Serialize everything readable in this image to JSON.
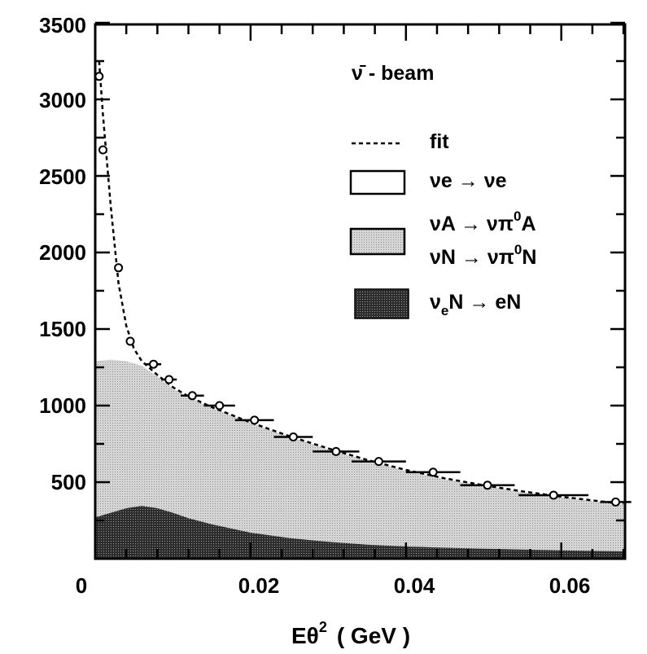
{
  "chart_data": {
    "type": "area",
    "title": "",
    "xlabel_main": "Eθ",
    "xlabel_sup": "2",
    "xlabel_unit": "( GeV )",
    "ylabel": "",
    "xlim": [
      0,
      0.068
    ],
    "ylim": [
      0,
      3500
    ],
    "x_tick_labels": [
      "0",
      "0.02",
      "0.04",
      "0.06"
    ],
    "y_tick_labels": [
      "500",
      "1000",
      "1500",
      "2000",
      "2500",
      "3000",
      "3500"
    ],
    "legend": {
      "beam_label": "ν̄ - beam",
      "fit_label": "fit",
      "nue_label": "νe → νe",
      "pi0_line1_a": "νA → νπ",
      "pi0_line1_sup": "0",
      "pi0_line1_b": "A",
      "pi0_line2_a": "νN → νπ",
      "pi0_line2_sup": "0",
      "pi0_line2_b": "N",
      "ccqe_a": "ν",
      "ccqe_sub": "e",
      "ccqe_b": "N → eN"
    },
    "series": [
      {
        "name": "fit",
        "x": [
          0.0005,
          0.001,
          0.002,
          0.003,
          0.004,
          0.005,
          0.006,
          0.008,
          0.01,
          0.012,
          0.015,
          0.02,
          0.025,
          0.03,
          0.035,
          0.04,
          0.045,
          0.05,
          0.055,
          0.06,
          0.065,
          0.068
        ],
        "values": [
          3250,
          2900,
          2300,
          1800,
          1520,
          1370,
          1290,
          1200,
          1120,
          1060,
          990,
          890,
          800,
          720,
          645,
          580,
          525,
          480,
          440,
          405,
          375,
          360
        ]
      },
      {
        "name": "νA → νπ0A / νN → νπ0N",
        "x": [
          0,
          0.002,
          0.004,
          0.006,
          0.008,
          0.01,
          0.012,
          0.015,
          0.02,
          0.025,
          0.03,
          0.035,
          0.04,
          0.045,
          0.05,
          0.055,
          0.06,
          0.065,
          0.068
        ],
        "values": [
          1290,
          1300,
          1290,
          1260,
          1190,
          1110,
          1055,
          985,
          885,
          795,
          715,
          640,
          575,
          520,
          475,
          435,
          400,
          370,
          355
        ]
      },
      {
        "name": "νeN → eN",
        "x": [
          0,
          0.002,
          0.004,
          0.006,
          0.008,
          0.01,
          0.012,
          0.015,
          0.02,
          0.025,
          0.03,
          0.035,
          0.04,
          0.045,
          0.05,
          0.055,
          0.06,
          0.065,
          0.068
        ],
        "values": [
          270,
          300,
          330,
          345,
          330,
          300,
          265,
          225,
          170,
          135,
          110,
          92,
          80,
          72,
          65,
          60,
          55,
          50,
          48
        ]
      }
    ],
    "data_points": {
      "x": [
        0.0005,
        0.001,
        0.003,
        0.0045,
        0.0075,
        0.0095,
        0.0125,
        0.016,
        0.0205,
        0.0255,
        0.031,
        0.0365,
        0.0435,
        0.0505,
        0.059,
        0.067
      ],
      "y": [
        3150,
        2670,
        1900,
        1420,
        1270,
        1170,
        1065,
        1000,
        905,
        795,
        700,
        635,
        565,
        480,
        415,
        370
      ],
      "xerr_half": [
        0.0005,
        0.0005,
        0.0005,
        0.0005,
        0.001,
        0.001,
        0.0015,
        0.002,
        0.0025,
        0.0025,
        0.003,
        0.0035,
        0.0035,
        0.0035,
        0.0045,
        0.002
      ]
    },
    "colors": {
      "pi0_fill": "#c4c4c4",
      "ccqe_fill": "#3c3c3c",
      "nue_fill": "#ffffff",
      "axis": "#000000"
    },
    "grid": false,
    "legend_position": "top-right"
  }
}
